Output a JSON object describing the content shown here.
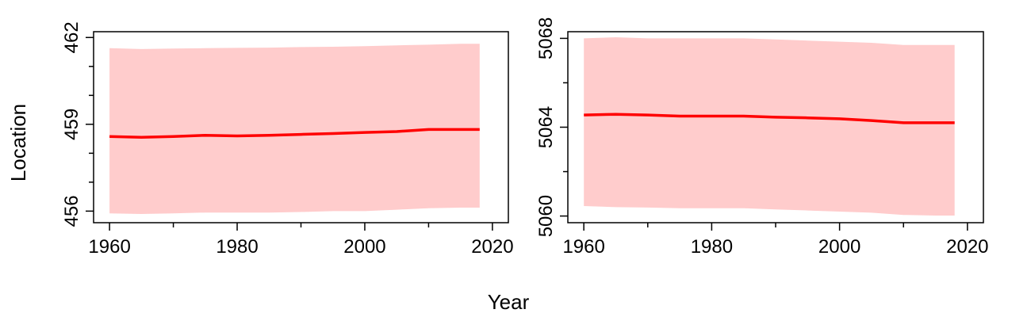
{
  "figure": {
    "xlabel": "Year",
    "ylabel": "Location"
  },
  "chart_data": [
    {
      "type": "line",
      "title": "",
      "xlabel": "",
      "ylabel": "",
      "xlim": [
        1957.5,
        2022.5
      ],
      "ylim": [
        455.6,
        462.2
      ],
      "x_major_ticks": [
        1960,
        1980,
        2000,
        2020
      ],
      "x_minor_ticks": [
        1970,
        1990,
        2010
      ],
      "y_major_ticks": [
        456,
        459,
        462
      ],
      "y_minor_ticks": [
        457,
        458,
        460,
        461
      ],
      "grid": false,
      "line_color": "#ff0000",
      "band_color": "#ffcccc",
      "series": [
        {
          "x": [
            1960,
            1965,
            1970,
            1975,
            1980,
            1985,
            1990,
            1995,
            2000,
            2005,
            2010,
            2015,
            2018
          ],
          "values": [
            458.58,
            458.55,
            458.58,
            458.62,
            458.6,
            458.62,
            458.65,
            458.68,
            458.72,
            458.75,
            458.82,
            458.82,
            458.82
          ],
          "lower": [
            455.92,
            455.9,
            455.92,
            455.95,
            455.95,
            455.95,
            455.97,
            456.0,
            456.0,
            456.05,
            456.1,
            456.12,
            456.12
          ],
          "upper": [
            461.63,
            461.6,
            461.62,
            461.63,
            461.64,
            461.65,
            461.67,
            461.68,
            461.7,
            461.73,
            461.75,
            461.78,
            461.78
          ]
        }
      ]
    },
    {
      "type": "line",
      "title": "",
      "xlabel": "",
      "ylabel": "",
      "xlim": [
        1957.5,
        2022.5
      ],
      "ylim": [
        5059.7,
        5068.3
      ],
      "x_major_ticks": [
        1960,
        1980,
        2000,
        2020
      ],
      "x_minor_ticks": [
        1970,
        1990,
        2010
      ],
      "y_major_ticks": [
        5060,
        5064,
        5068
      ],
      "y_minor_ticks": [
        5062,
        5066
      ],
      "grid": false,
      "line_color": "#ff0000",
      "band_color": "#ffcccc",
      "series": [
        {
          "x": [
            1960,
            1965,
            1970,
            1975,
            1980,
            1985,
            1990,
            1995,
            2000,
            2005,
            2010,
            2015,
            2018
          ],
          "values": [
            5064.55,
            5064.58,
            5064.55,
            5064.5,
            5064.5,
            5064.5,
            5064.45,
            5064.42,
            5064.38,
            5064.3,
            5064.2,
            5064.2,
            5064.2
          ],
          "lower": [
            5060.45,
            5060.4,
            5060.38,
            5060.35,
            5060.35,
            5060.35,
            5060.3,
            5060.25,
            5060.2,
            5060.15,
            5060.05,
            5060.02,
            5060.02
          ],
          "upper": [
            5068.0,
            5068.05,
            5068.0,
            5068.0,
            5068.0,
            5068.0,
            5067.95,
            5067.9,
            5067.85,
            5067.8,
            5067.7,
            5067.7,
            5067.7
          ]
        }
      ]
    }
  ]
}
